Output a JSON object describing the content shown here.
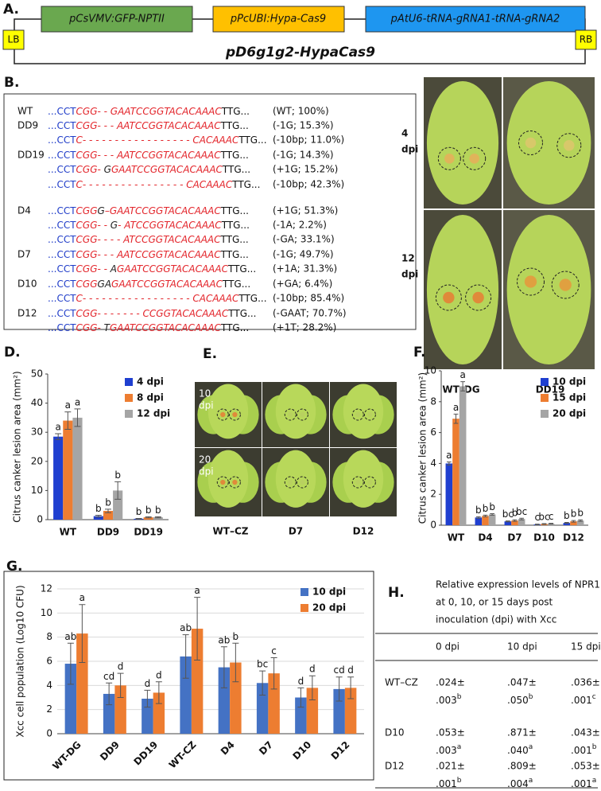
{
  "panels": {
    "A": {
      "panel_label": "A.",
      "cassettes": [
        "pCsVMV:GFP-NPTII",
        "pPcUBI:Hypa-Cas9",
        "pAtU6-tRNA-gRNA1-tRNA-gRNA2"
      ],
      "left_border": "LB",
      "right_border": "RB",
      "name": "pD6g1g2-HypaCas9"
    },
    "B": {
      "panel_label": "B.",
      "rows": [
        {
          "label": "WT",
          "prefix": "...CCT",
          "seq": [
            {
              "text": "CGG- - GAATCCGGTACACAAAC",
              "color": "#e3262c"
            }
          ],
          "suffix": "TTG...",
          "note": "(WT; 100%)"
        },
        {
          "label": "DD9",
          "prefix": "...CCT",
          "seq": [
            {
              "text": "CGG- - - AATCCGGTACACAAAC",
              "color": "#e3262c"
            }
          ],
          "suffix": "TTG...",
          "note": "(-1G; 15.3%)"
        },
        {
          "label": null,
          "prefix": "...CCT",
          "seq": [
            {
              "text": "C- - - - - - - - - - - - - - - - - CACAAAC",
              "color": "#e3262c"
            }
          ],
          "suffix": "TTG...",
          "note": "(-10bp; 11.0%)"
        },
        {
          "label": "DD19",
          "prefix": "...CCT",
          "seq": [
            {
              "text": "CGG- - - AATCCGGTACACAAAC",
              "color": "#e3262c"
            }
          ],
          "suffix": "TTG...",
          "note": "(-1G; 14.3%)"
        },
        {
          "label": null,
          "prefix": "...CCT",
          "seq": [
            {
              "text": "CGG- ",
              "color": "#e3262c"
            },
            {
              "text": "G",
              "color": "#222222"
            },
            {
              "text": "GAATCCGGTACACAAAC",
              "color": "#e3262c"
            }
          ],
          "suffix": "TTG...",
          "note": "(+1G; 15.2%)"
        },
        {
          "label": null,
          "prefix": "...CCT",
          "seq": [
            {
              "text": "C- - - - - - - - - - - - - - - - CACAAAC",
              "color": "#e3262c"
            }
          ],
          "suffix": "TTG...",
          "note": "(-10bp; 42.3%)"
        },
        {
          "label": "D4",
          "prefix": "...CCT",
          "seq": [
            {
              "text": "CGG",
              "color": "#e3262c"
            },
            {
              "text": "G",
              "color": "#222222"
            },
            {
              "text": "–GAATCCGGTACACAAAC",
              "color": "#e3262c"
            }
          ],
          "suffix": "TTG...",
          "note": "(+1G; 51.3%)"
        },
        {
          "label": null,
          "prefix": "...CCT",
          "seq": [
            {
              "text": "CGG- - ",
              "color": "#e3262c"
            },
            {
              "text": "G",
              "color": "#222222"
            },
            {
              "text": "- ATCCGGTACACAAAC",
              "color": "#e3262c"
            }
          ],
          "suffix": "TTG...",
          "note": "(-1A; 2.2%)"
        },
        {
          "label": null,
          "prefix": "...CCT",
          "seq": [
            {
              "text": "CGG- - - - ATCCGGTACACAAAC",
              "color": "#e3262c"
            }
          ],
          "suffix": "TTG...",
          "note": "(-GA; 33.1%)"
        },
        {
          "label": "D7",
          "prefix": "...CCT",
          "seq": [
            {
              "text": "CGG- - - AATCCGGTACACAAAC",
              "color": "#e3262c"
            }
          ],
          "suffix": "TTG...",
          "note": "(-1G; 49.7%)"
        },
        {
          "label": null,
          "prefix": "...CCT",
          "seq": [
            {
              "text": "CGG- - ",
              "color": "#e3262c"
            },
            {
              "text": "A",
              "color": "#222222"
            },
            {
              "text": "GAATCCGGTACACAAAC",
              "color": "#e3262c"
            }
          ],
          "suffix": "TTG...",
          "note": "(+1A; 31.3%)"
        },
        {
          "label": "D10",
          "prefix": "...CCT",
          "seq": [
            {
              "text": "CGG",
              "color": "#e3262c"
            },
            {
              "text": "GA",
              "color": "#222222"
            },
            {
              "text": "GAATCCGGTACACAAAC",
              "color": "#e3262c"
            }
          ],
          "suffix": "TTG...",
          "note": "(+GA; 6.4%)"
        },
        {
          "label": null,
          "prefix": "...CCT",
          "seq": [
            {
              "text": "C- - - - - - - - - - - - - - - - - CACAAAC",
              "color": "#e3262c"
            }
          ],
          "suffix": "TTG...",
          "note": "(-10bp; 85.4%)"
        },
        {
          "label": "D12",
          "prefix": "...CCT",
          "seq": [
            {
              "text": "CGG- - - - - - - CCGGTACACAAAC",
              "color": "#e3262c"
            }
          ],
          "suffix": "TTG...",
          "note": "(-GAAT; 70.7%)"
        },
        {
          "label": null,
          "prefix": "...CCT",
          "seq": [
            {
              "text": "CGG- ",
              "color": "#e3262c"
            },
            {
              "text": "T",
              "color": "#222222"
            },
            {
              "text": "GAATCCGGTACACAAAC",
              "color": "#e3262c"
            }
          ],
          "suffix": "TTG...",
          "note": "(+1T; 28.2%)"
        }
      ],
      "prefix_color": "#1f3cc8"
    },
    "C": {
      "panel_label": "C.",
      "row_labels": [
        [
          "4",
          "dpi"
        ],
        [
          "12",
          "dpi"
        ]
      ],
      "column_labels": [
        "WT–DG",
        "DD19"
      ]
    },
    "E": {
      "panel_label": "E.",
      "row_labels": [
        [
          "10",
          "dpi"
        ],
        [
          "20",
          "dpi"
        ]
      ],
      "column_labels": [
        "WT–CZ",
        "D7",
        "D12"
      ]
    },
    "H": {
      "panel_label": "H.",
      "title_lines": [
        "Relative expression levels of NPR1",
        "at 0, 10, or 15 days post",
        "inoculation (dpi) with Xcc"
      ],
      "columns": [
        "0 dpi",
        "10 dpi",
        "15 dpi"
      ],
      "rows": [
        {
          "label": "WT–CZ",
          "cells": [
            {
              "mean": ".024±",
              "sd": ".003",
              "letter": "b"
            },
            {
              "mean": ".047±",
              "sd": ".050",
              "letter": "b"
            },
            {
              "mean": ".036±",
              "sd": ".001",
              "letter": "c"
            }
          ]
        },
        {
          "label": "D10",
          "cells": [
            {
              "mean": ".053±",
              "sd": ".003",
              "letter": "a"
            },
            {
              "mean": ".871±",
              "sd": ".040",
              "letter": "a"
            },
            {
              "mean": ".043±",
              "sd": ".001",
              "letter": "b"
            }
          ]
        },
        {
          "label": "D12",
          "cells": [
            {
              "mean": ".021±",
              "sd": ".001",
              "letter": "b"
            },
            {
              "mean": ".809±",
              "sd": ".004",
              "letter": "a"
            },
            {
              "mean": ".053±",
              "sd": ".001",
              "letter": "a"
            }
          ]
        }
      ]
    }
  },
  "chart_data": [
    {
      "type": "bar",
      "panel_label": "D.",
      "y_label": "Citrus canker lesion area (mm²)",
      "categories": [
        "WT",
        "DD9",
        "DD19"
      ],
      "ylim": [
        0,
        50
      ],
      "yticks": [
        0,
        10,
        20,
        30,
        40,
        50
      ],
      "grid": false,
      "legend": "upper right",
      "series": [
        {
          "name": "4 dpi",
          "color": "#1f3fd0",
          "values": [
            28.5,
            1.2,
            0.3
          ],
          "errors": [
            1,
            0.3,
            0.1
          ],
          "letters": [
            "a",
            "b",
            "b"
          ]
        },
        {
          "name": "8 dpi",
          "color": "#ed7d31",
          "values": [
            34,
            3,
            0.8
          ],
          "errors": [
            3,
            0.6,
            0.2
          ],
          "letters": [
            "a",
            "b",
            "b"
          ]
        },
        {
          "name": "12 dpi",
          "color": "#a5a5a5",
          "values": [
            35,
            10,
            0.8
          ],
          "errors": [
            3,
            3,
            0.2
          ],
          "letters": [
            "a",
            "b",
            "b"
          ]
        }
      ]
    },
    {
      "type": "bar",
      "panel_label": "F.",
      "y_label": "Citrus canker lesion area (mm²)",
      "categories": [
        "WT",
        "D4",
        "D7",
        "D10",
        "D12"
      ],
      "ylim": [
        0,
        10
      ],
      "yticks": [
        0,
        2,
        4,
        6,
        8,
        10
      ],
      "grid": false,
      "legend": "upper right",
      "series": [
        {
          "name": "10 dpi",
          "color": "#1f3fd0",
          "values": [
            4,
            0.5,
            0.25,
            0.05,
            0.15
          ],
          "errors": [
            0.1,
            0.05,
            0.03,
            0.02,
            0.03
          ],
          "letters": [
            "a",
            "b",
            "bc",
            "c",
            "b"
          ]
        },
        {
          "name": "15 dpi",
          "color": "#ed7d31",
          "values": [
            6.9,
            0.6,
            0.3,
            0.08,
            0.25
          ],
          "errors": [
            0.3,
            0.05,
            0.05,
            0.02,
            0.05
          ],
          "letters": [
            "a",
            "b",
            "b",
            "bc",
            "b"
          ]
        },
        {
          "name": "20 dpi",
          "color": "#a5a5a5",
          "values": [
            9,
            0.7,
            0.4,
            0.1,
            0.3
          ],
          "errors": [
            0.3,
            0.05,
            0.05,
            0.02,
            0.05
          ],
          "letters": [
            "a",
            "b",
            "bc",
            "c",
            "b"
          ]
        }
      ]
    },
    {
      "type": "bar",
      "panel_label": "G.",
      "y_label": "Xcc cell population (Log10 CFU)",
      "categories": [
        "WT-DG",
        "DD9",
        "DD19",
        "WT-CZ",
        "D4",
        "D7",
        "D10",
        "D12"
      ],
      "ylim": [
        0,
        12
      ],
      "yticks": [
        0,
        2,
        4,
        6,
        8,
        10,
        12
      ],
      "grid": true,
      "legend": "upper right",
      "series": [
        {
          "name": "10 dpi",
          "color": "#4472c4",
          "values": [
            5.8,
            3.3,
            2.9,
            6.4,
            5.5,
            4.2,
            3.0,
            3.7
          ],
          "errors": [
            1.7,
            0.9,
            0.7,
            1.8,
            1.7,
            1.0,
            0.8,
            1.0
          ],
          "letters": [
            "ab",
            "cd",
            "d",
            "ab",
            "ab",
            "bc",
            "d",
            "cd"
          ]
        },
        {
          "name": "20 dpi",
          "color": "#ed7d31",
          "values": [
            8.3,
            4.0,
            3.4,
            8.7,
            5.9,
            5.0,
            3.8,
            3.8
          ],
          "errors": [
            2.4,
            1.0,
            0.9,
            2.6,
            1.6,
            1.3,
            1.0,
            0.9
          ],
          "letters": [
            "a",
            "d",
            "d",
            "a",
            "b",
            "c",
            "d",
            "d"
          ]
        }
      ]
    }
  ]
}
